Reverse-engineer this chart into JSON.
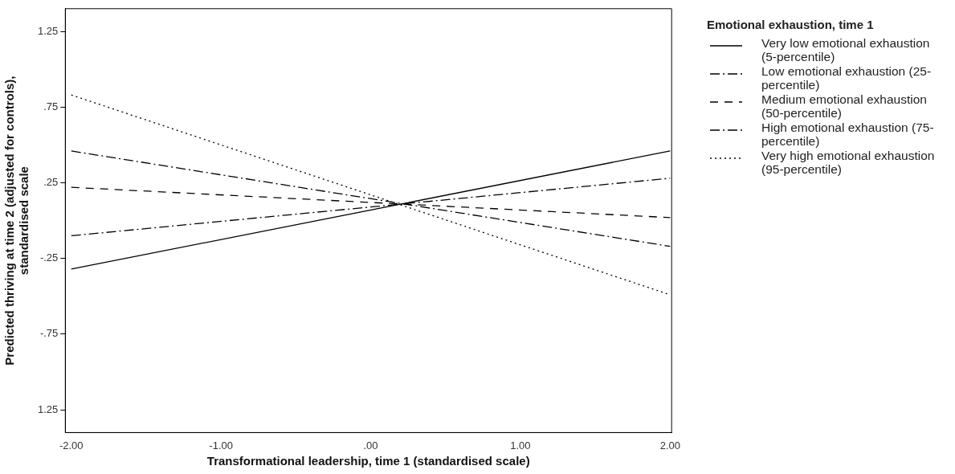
{
  "chart_data": {
    "type": "line",
    "xlabel": "Transformational leadership, time 1 (standardised scale)",
    "ylabel": "Predicted thriving at time 2 (adjusted for controls), standardised scale",
    "legend_title": "Emotional exhaustion, time 1",
    "legend": "right",
    "grid": false,
    "marker": "none",
    "x": [
      -2,
      2
    ],
    "xlim": [
      -2.04,
      2.01
    ],
    "ylim": [
      -1.4,
      1.4
    ],
    "xticks": [
      {
        "value": -2,
        "label": "-2.00"
      },
      {
        "value": -1,
        "label": "-1.00"
      },
      {
        "value": 0,
        "label": ".00"
      },
      {
        "value": 1,
        "label": "1.00"
      },
      {
        "value": 2,
        "label": "2.00"
      }
    ],
    "yticks": [
      {
        "value": -1.25,
        "label": "1.25"
      },
      {
        "value": -0.75,
        "label": "-.75"
      },
      {
        "value": -0.25,
        "label": "-.25"
      },
      {
        "value": 0.25,
        "label": ".25"
      },
      {
        "value": 0.75,
        "label": ".75"
      },
      {
        "value": 1.25,
        "label": "1.25"
      }
    ],
    "series": [
      {
        "name": "Very low emotional exhaustion (5-percentile)",
        "color": "#000000",
        "line_style": "solid",
        "values": [
          -0.32,
          0.46
        ]
      },
      {
        "name": "Low emotional exhaustion (25-percentile)",
        "color": "#000000",
        "line_style": "dashdot",
        "values": [
          -0.1,
          0.28
        ]
      },
      {
        "name": "Medium emotional exhaustion (50-percentile)",
        "color": "#000000",
        "line_style": "dashed",
        "values": [
          0.22,
          0.02
        ]
      },
      {
        "name": "High emotional exhaustion (75-percentile)",
        "color": "#000000",
        "line_style": "dashdot",
        "values": [
          0.46,
          -0.17
        ]
      },
      {
        "name": "Very high emotional exhaustion (95-percentile)",
        "color": "#000000",
        "line_style": "dotted",
        "values": [
          0.83,
          -0.49
        ]
      }
    ]
  }
}
